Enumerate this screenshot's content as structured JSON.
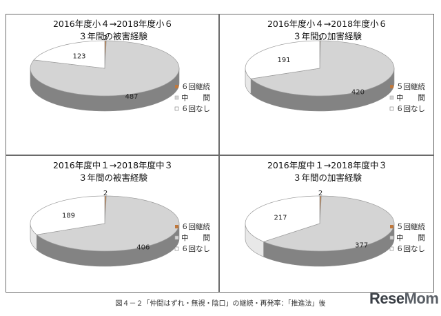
{
  "chart_data": [
    {
      "type": "pie",
      "title_line1": "2016年度小４→2018年度小６",
      "title_line2": "３年間の被害経験",
      "categories": [
        "６回継続",
        "中　　間",
        "６回なし"
      ],
      "values": [
        2,
        487,
        123
      ]
    },
    {
      "type": "pie",
      "title_line1": "2016年度小４→2018年度小６",
      "title_line2": "３年間の加害経験",
      "categories": [
        "５回継続",
        "中　　間",
        "６回なし"
      ],
      "values": [
        1,
        420,
        191
      ]
    },
    {
      "type": "pie",
      "title_line1": "2016年度中１→2018年度中３",
      "title_line2": "３年間の被害経験",
      "categories": [
        "６回継続",
        "中　　間",
        "６回なし"
      ],
      "values": [
        2,
        406,
        189
      ]
    },
    {
      "type": "pie",
      "title_line1": "2016年度中１→2018年度中３",
      "title_line2": "３年間の加害経験",
      "categories": [
        "５回継続",
        "中　　間",
        "６回なし"
      ],
      "values": [
        2,
        377,
        217
      ]
    }
  ],
  "colors": {
    "continuous": "#c0783c",
    "middle": "#d4d4d4",
    "none": "#ffffff"
  },
  "caption": "図４－２「仲間はずれ・無視・陰口」の継続・再発率：「推進法」後",
  "logo": {
    "part1": "Rese",
    "part2": "Mom"
  }
}
